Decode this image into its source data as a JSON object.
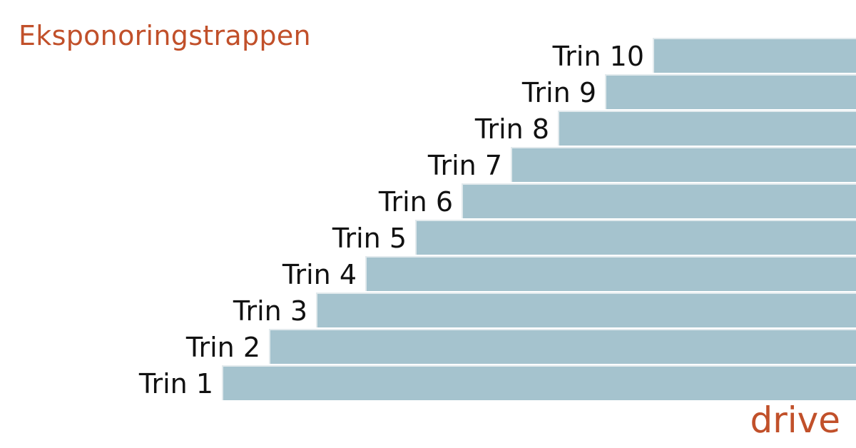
{
  "title": "Eksponoringstrappen",
  "steps": [
    {
      "label": "Trin 1"
    },
    {
      "label": "Trin 2"
    },
    {
      "label": "Trin 3"
    },
    {
      "label": "Trin 4"
    },
    {
      "label": "Trin 5"
    },
    {
      "label": "Trin 6"
    },
    {
      "label": "Trin 7"
    },
    {
      "label": "Trin 8"
    },
    {
      "label": "Trin 9"
    },
    {
      "label": "Trin 10"
    }
  ],
  "logo": "drive",
  "colors": {
    "accent": "#c1502a",
    "step_fill": "#a5c3ce",
    "text": "#111111"
  }
}
